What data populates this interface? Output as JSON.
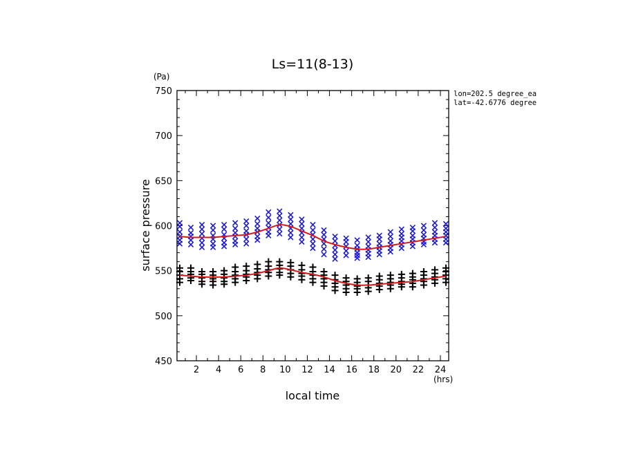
{
  "chart_data": {
    "type": "scatter",
    "title": "Ls=11(8-13)",
    "xlabel": "local time",
    "ylabel": "surface pressure",
    "x_unit": "(hrs)",
    "y_unit": "(Pa)",
    "xlim": [
      0.25,
      24.75
    ],
    "ylim": [
      450,
      750
    ],
    "xticks": [
      2,
      4,
      6,
      8,
      10,
      12,
      14,
      16,
      18,
      20,
      22,
      24
    ],
    "xtick_labels": [
      "2",
      "4",
      "6",
      "8",
      "10",
      "12",
      "14",
      "16",
      "18",
      "20",
      "22",
      "24"
    ],
    "yticks": [
      450,
      500,
      550,
      600,
      650,
      700,
      750
    ],
    "ytick_labels": [
      "450",
      "500",
      "550",
      "600",
      "650",
      "700",
      "750"
    ],
    "annotations": [
      "lon=202.5 degree_ea",
      "lat=-42.6776 degree"
    ],
    "hours": [
      0.5,
      1.5,
      2.5,
      3.5,
      4.5,
      5.5,
      6.5,
      7.5,
      8.5,
      9.5,
      10.5,
      11.5,
      12.5,
      13.5,
      14.5,
      15.5,
      16.5,
      17.5,
      18.5,
      19.5,
      20.5,
      21.5,
      22.5,
      23.5,
      24.5
    ],
    "series": [
      {
        "marker": "x",
        "color": "#1a1ad4",
        "y": [
          [
            580,
            584,
            588,
            593,
            599,
            603
          ],
          [
            579,
            584,
            588,
            592,
            598
          ],
          [
            576,
            581,
            586,
            591,
            596,
            601
          ],
          [
            576,
            580,
            585,
            589,
            595,
            600
          ],
          [
            577,
            581,
            586,
            590,
            596,
            601
          ],
          [
            579,
            583,
            588,
            592,
            597,
            603
          ],
          [
            580,
            585,
            590,
            594,
            600,
            605
          ],
          [
            584,
            588,
            593,
            597,
            602,
            608
          ],
          [
            589,
            593,
            598,
            603,
            609,
            615
          ],
          [
            591,
            596,
            601,
            606,
            611,
            616
          ],
          [
            587,
            592,
            597,
            602,
            607,
            612
          ],
          [
            582,
            587,
            592,
            597,
            602,
            607
          ],
          [
            575,
            580,
            585,
            590,
            595,
            601
          ],
          [
            568,
            574,
            580,
            585,
            590,
            595
          ],
          [
            563,
            568,
            573,
            578,
            583,
            588
          ],
          [
            567,
            572,
            577,
            582,
            586
          ],
          [
            564,
            567,
            570,
            574,
            578,
            584
          ],
          [
            565,
            569,
            573,
            577,
            582,
            587
          ],
          [
            568,
            572,
            576,
            580,
            585,
            589
          ],
          [
            571,
            575,
            579,
            583,
            588,
            593
          ],
          [
            575,
            579,
            583,
            587,
            591,
            596
          ],
          [
            577,
            581,
            585,
            589,
            594,
            598
          ],
          [
            579,
            582,
            586,
            590,
            595,
            600
          ],
          [
            581,
            585,
            589,
            593,
            598,
            603
          ],
          [
            581,
            585,
            589,
            593,
            597,
            602
          ]
        ]
      },
      {
        "marker": "+",
        "color": "#000000",
        "y": [
          [
            537,
            541,
            545,
            549,
            553
          ],
          [
            539,
            542,
            546,
            549,
            553
          ],
          [
            535,
            538,
            542,
            546,
            549
          ],
          [
            534,
            538,
            541,
            545,
            549
          ],
          [
            535,
            538,
            542,
            546,
            550
          ],
          [
            537,
            541,
            545,
            549,
            554
          ],
          [
            539,
            543,
            546,
            550,
            555
          ],
          [
            541,
            545,
            548,
            552,
            557
          ],
          [
            544,
            548,
            551,
            555,
            560
          ],
          [
            545,
            548,
            552,
            556,
            560
          ],
          [
            543,
            547,
            551,
            555,
            559
          ],
          [
            540,
            544,
            547,
            551,
            556
          ],
          [
            537,
            541,
            545,
            549,
            554
          ],
          [
            533,
            537,
            541,
            545,
            549
          ],
          [
            528,
            532,
            536,
            540,
            545
          ],
          [
            526,
            530,
            534,
            538,
            542
          ],
          [
            526,
            530,
            533,
            537,
            541
          ],
          [
            527,
            531,
            534,
            538,
            542
          ],
          [
            529,
            533,
            536,
            540,
            544
          ],
          [
            530,
            534,
            537,
            541,
            545
          ],
          [
            532,
            535,
            538,
            542,
            546
          ],
          [
            532,
            536,
            540,
            543,
            547
          ],
          [
            534,
            538,
            541,
            545,
            549
          ],
          [
            536,
            540,
            543,
            547,
            551
          ],
          [
            537,
            541,
            545,
            549,
            553
          ]
        ]
      }
    ],
    "fit_lines": [
      {
        "color": "#d41a1a",
        "y": [
          588,
          587,
          587,
          587,
          588,
          589,
          590,
          593,
          597,
          601,
          599,
          594,
          589,
          583,
          579,
          576,
          574,
          574,
          576,
          578,
          580,
          582,
          584,
          586,
          588
        ]
      },
      {
        "color": "#d41a1a",
        "y": [
          545,
          544,
          543,
          543,
          543,
          544,
          545,
          547,
          550,
          553,
          551,
          548,
          546,
          543,
          539,
          536,
          534,
          534,
          535,
          536,
          537,
          538,
          540,
          542,
          544
        ]
      }
    ]
  }
}
